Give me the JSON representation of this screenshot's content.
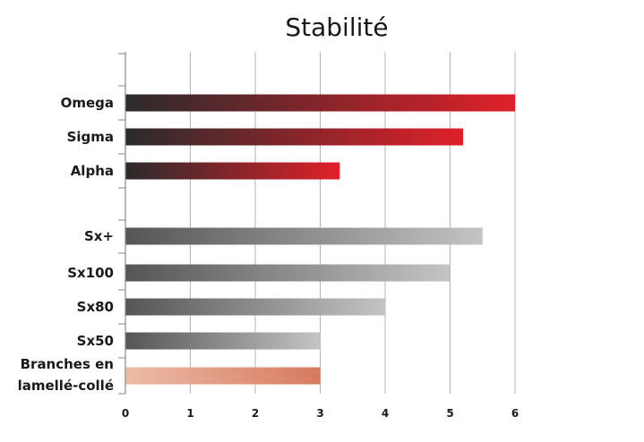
{
  "chart_data": {
    "type": "bar",
    "orientation": "horizontal",
    "title": "Stabilité",
    "xlim": [
      0,
      6
    ],
    "x_ticks": [
      "0",
      "1",
      "2",
      "3",
      "4",
      "5",
      "6"
    ],
    "grid": "vertical",
    "bars": [
      {
        "label": "Omega",
        "value": 6.0,
        "group": "red"
      },
      {
        "label": "Sigma",
        "value": 5.2,
        "group": "red"
      },
      {
        "label": "Alpha",
        "value": 3.3,
        "group": "red"
      },
      {
        "label": "Sx+",
        "value": 5.5,
        "group": "grey"
      },
      {
        "label": "Sx100",
        "value": 5.0,
        "group": "grey"
      },
      {
        "label": "Sx80",
        "value": 4.0,
        "group": "grey"
      },
      {
        "label": "Sx50",
        "value": 3.0,
        "group": "grey"
      },
      {
        "label": "Branches en lamellé-collé",
        "label_lines": [
          "Branches en",
          "lamellé-collé"
        ],
        "value": 3.0,
        "group": "salmon"
      }
    ],
    "colors": {
      "red_start": "#2b2b2b",
      "red_end": "#e0202a",
      "grey_start": "#555555",
      "grey_end": "#c4c4c4",
      "salmon_start": "#ecbca6",
      "salmon_end": "#d77a5e",
      "grid": "#b5b5b5",
      "axis": "#888888"
    }
  }
}
